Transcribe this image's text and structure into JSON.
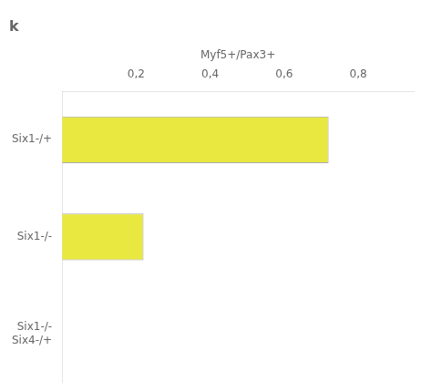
{
  "chart_data": {
    "type": "bar",
    "title": "k",
    "orientation": "horizontal",
    "categories": [
      "Six1-/+",
      "Six1-/-",
      "Six1-/-\nSix4-/+"
    ],
    "values": [
      0.72,
      0.22,
      0.0
    ],
    "color": "#e8e840",
    "x_label": "Myf5+/Pax3+",
    "xlim": [
      0,
      0.95
    ],
    "xticks": [
      {
        "value": 0.2,
        "label": "0,2"
      },
      {
        "value": 0.4,
        "label": "0,4"
      },
      {
        "value": 0.6,
        "label": "0,6"
      },
      {
        "value": 0.8,
        "label": "0,8"
      }
    ],
    "grid": false
  }
}
